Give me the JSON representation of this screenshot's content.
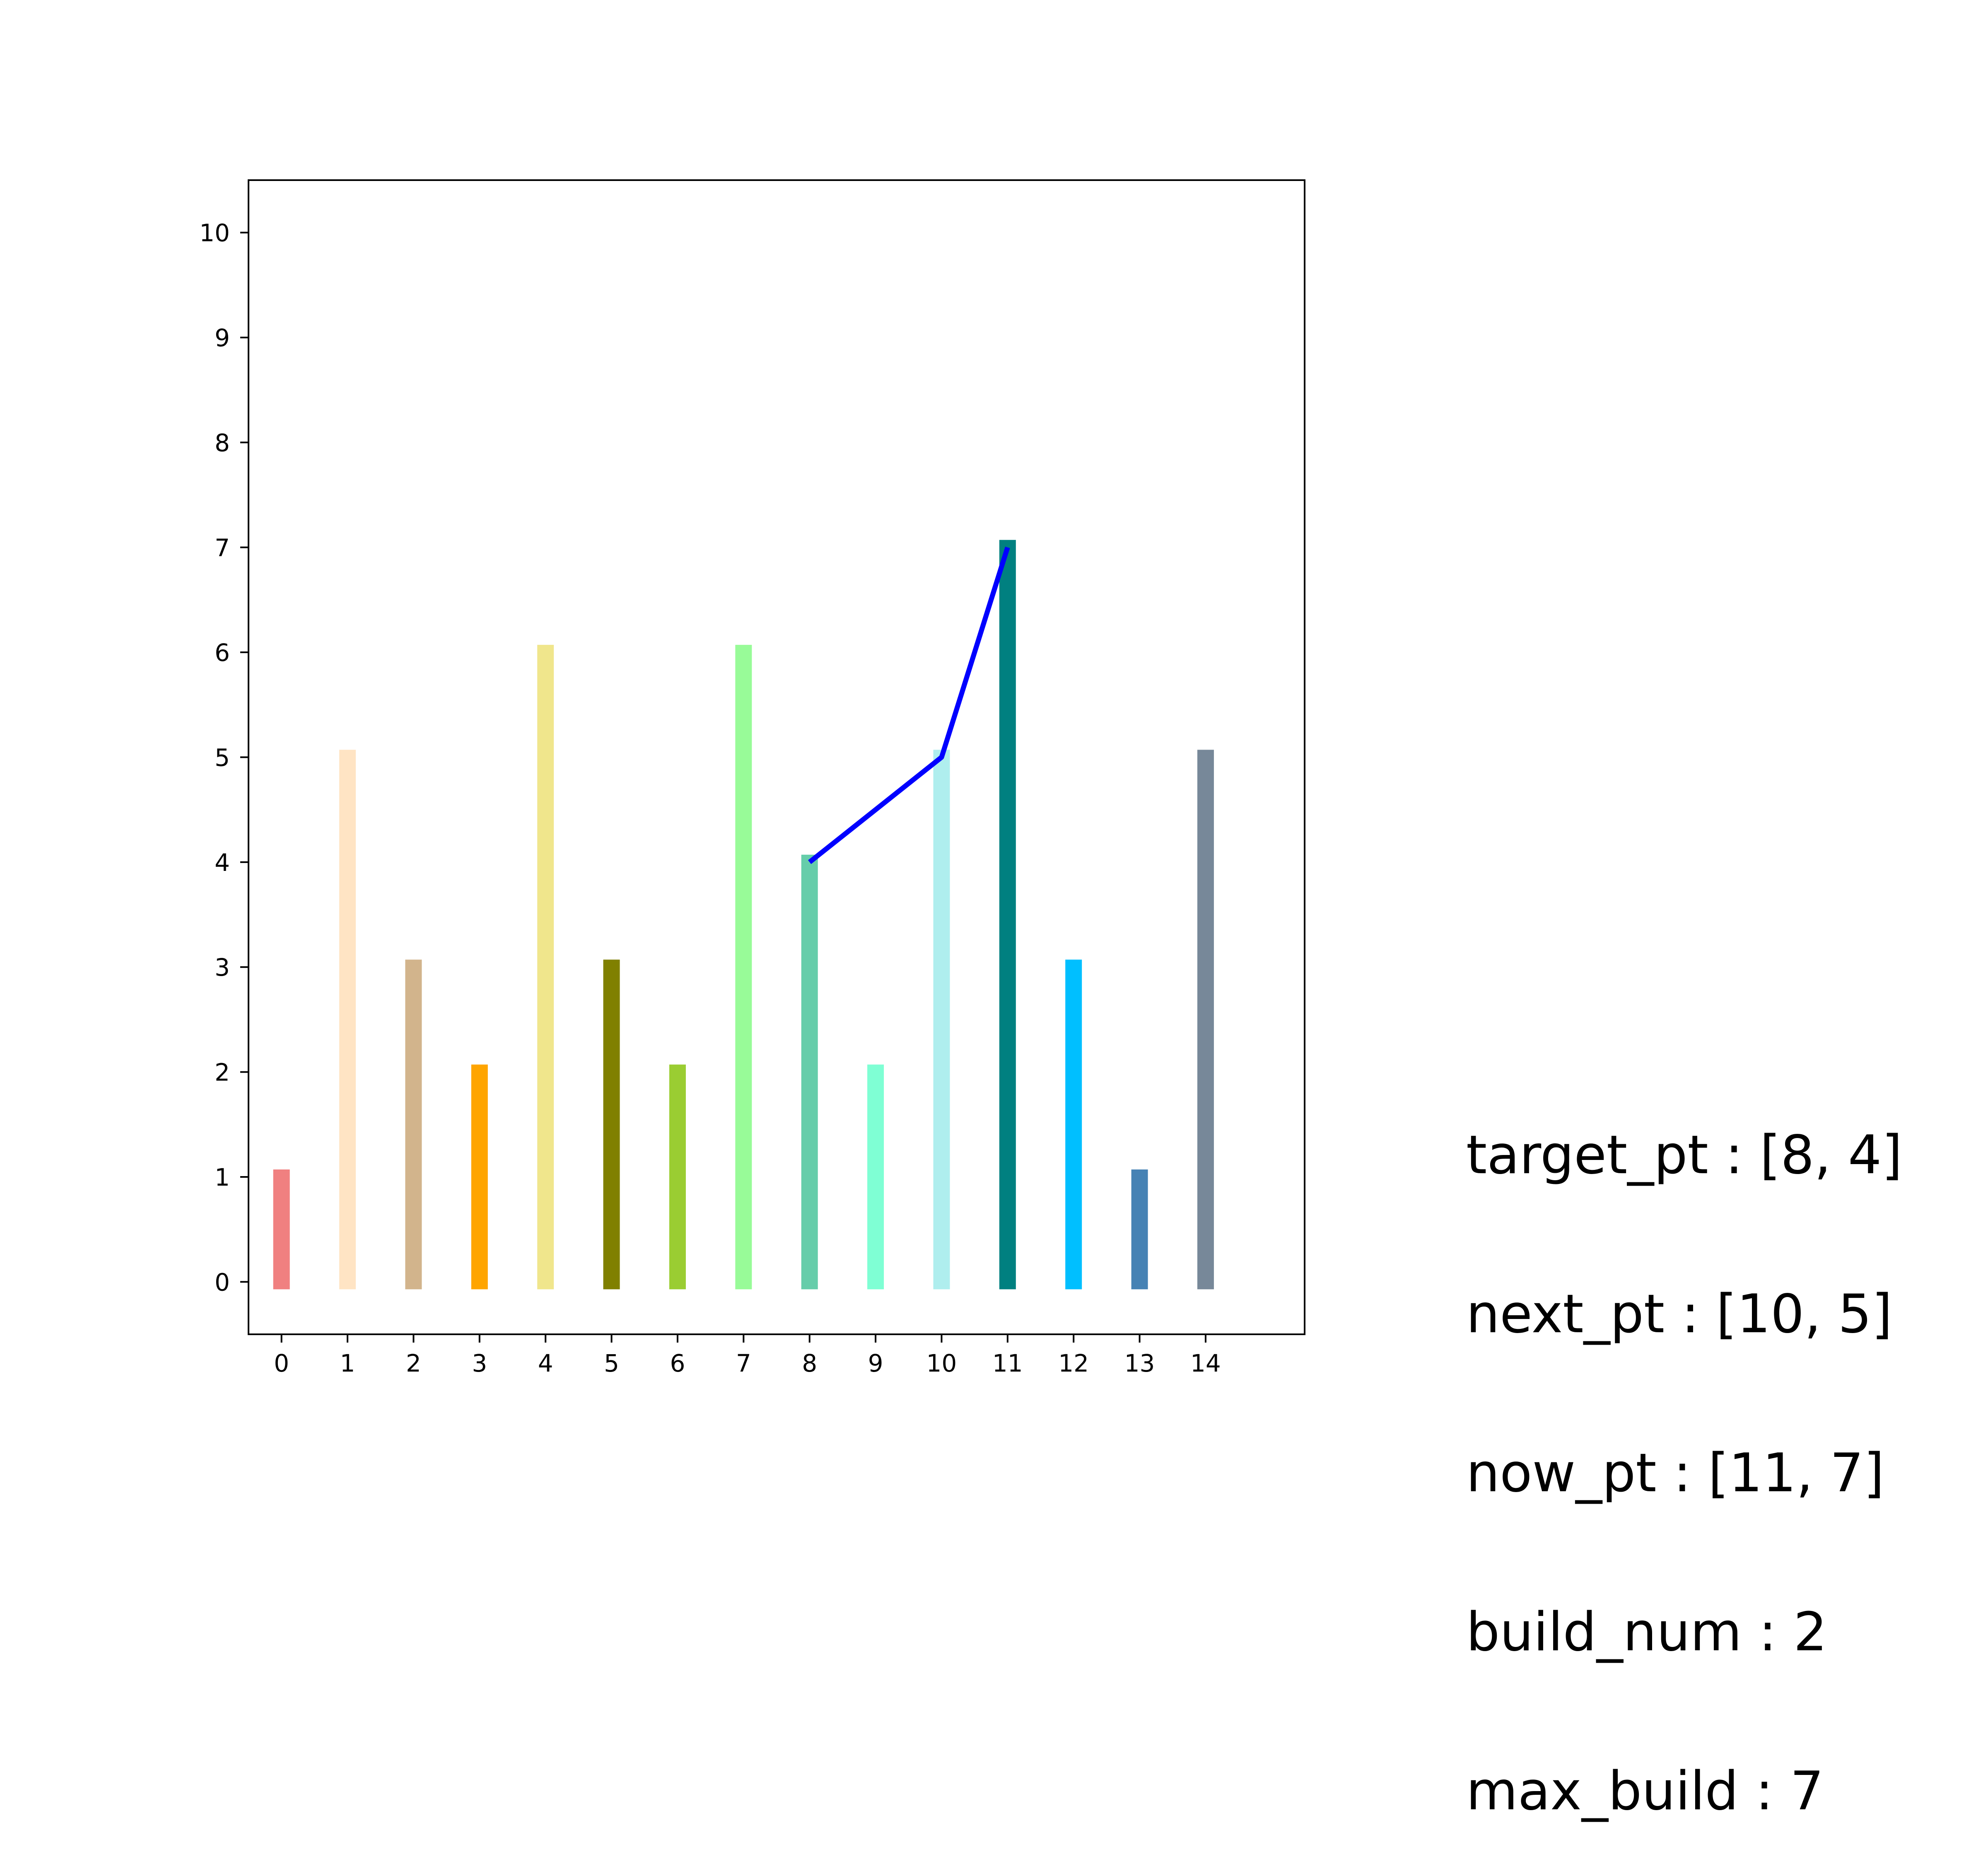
{
  "chart_data": {
    "type": "bar",
    "categories": [
      "0",
      "1",
      "2",
      "3",
      "4",
      "5",
      "6",
      "7",
      "8",
      "9",
      "10",
      "11",
      "12",
      "13",
      "14"
    ],
    "values": [
      1,
      5,
      3,
      2,
      6,
      3,
      2,
      6,
      4,
      2,
      5,
      7,
      3,
      1,
      5
    ],
    "bar_colors": [
      "#F08080",
      "#FFE4C4",
      "#D2B48C",
      "#FFA500",
      "#F0E68C",
      "#808000",
      "#9ACD32",
      "#98FB98",
      "#66CDAA",
      "#7FFFD4",
      "#AFEEEE",
      "#008080",
      "#00BFFF",
      "#4682B4",
      "#778899"
    ],
    "path": {
      "x": [
        8,
        10,
        11
      ],
      "y": [
        4,
        5,
        7
      ],
      "color": "#0000FF"
    },
    "xlim": [
      -0.5,
      15.5
    ],
    "ylim": [
      -0.5,
      10.5
    ],
    "yticks": [
      0,
      1,
      2,
      3,
      4,
      5,
      6,
      7,
      8,
      9,
      10
    ],
    "title": "",
    "xlabel": "",
    "ylabel": "",
    "grid": false
  },
  "info": {
    "lines": [
      "target_pt : [8, 4]",
      "next_pt : [10, 5]",
      "now_pt : [11, 7]",
      "build_num : 2",
      "max_build : 7"
    ]
  }
}
